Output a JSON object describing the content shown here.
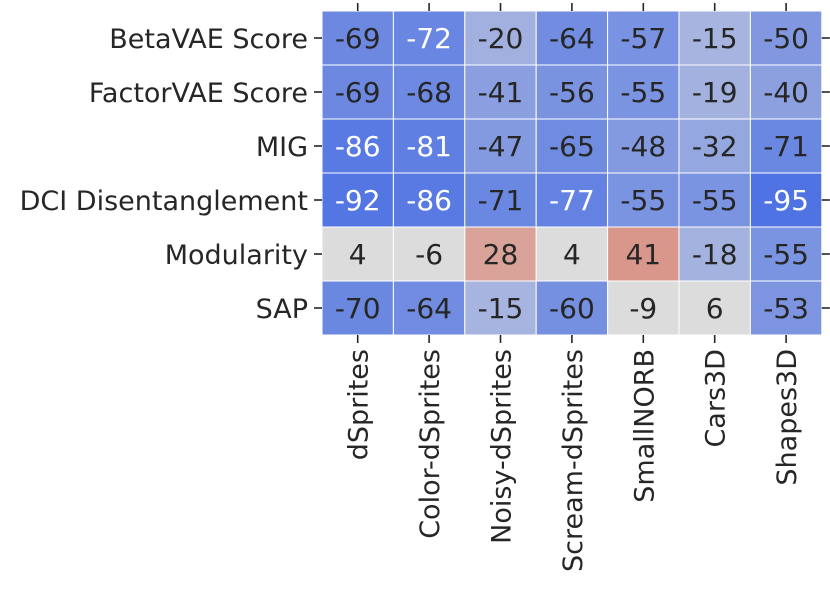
{
  "chart_data": {
    "type": "heatmap",
    "rows": [
      "BetaVAE Score",
      "FactorVAE Score",
      "MIG",
      "DCI Disentanglement",
      "Modularity",
      "SAP"
    ],
    "columns": [
      "dSprites",
      "Color-dSprites",
      "Noisy-dSprites",
      "Scream-dSprites",
      "SmallNORB",
      "Cars3D",
      "Shapes3D"
    ],
    "values": [
      [
        -69,
        -72,
        -20,
        -64,
        -57,
        -15,
        -50
      ],
      [
        -69,
        -68,
        -41,
        -56,
        -55,
        -19,
        -40
      ],
      [
        -86,
        -81,
        -47,
        -65,
        -48,
        -32,
        -71
      ],
      [
        -92,
        -86,
        -71,
        -77,
        -55,
        -55,
        -95
      ],
      [
        4,
        -6,
        28,
        4,
        41,
        -18,
        -55
      ],
      [
        -70,
        -64,
        -15,
        -60,
        -9,
        6,
        -53
      ]
    ],
    "colormap": "coolwarm",
    "zero_color": "#dcdcdc",
    "negative_color": "#4a6fe3",
    "positive_color": "#d6604d"
  }
}
